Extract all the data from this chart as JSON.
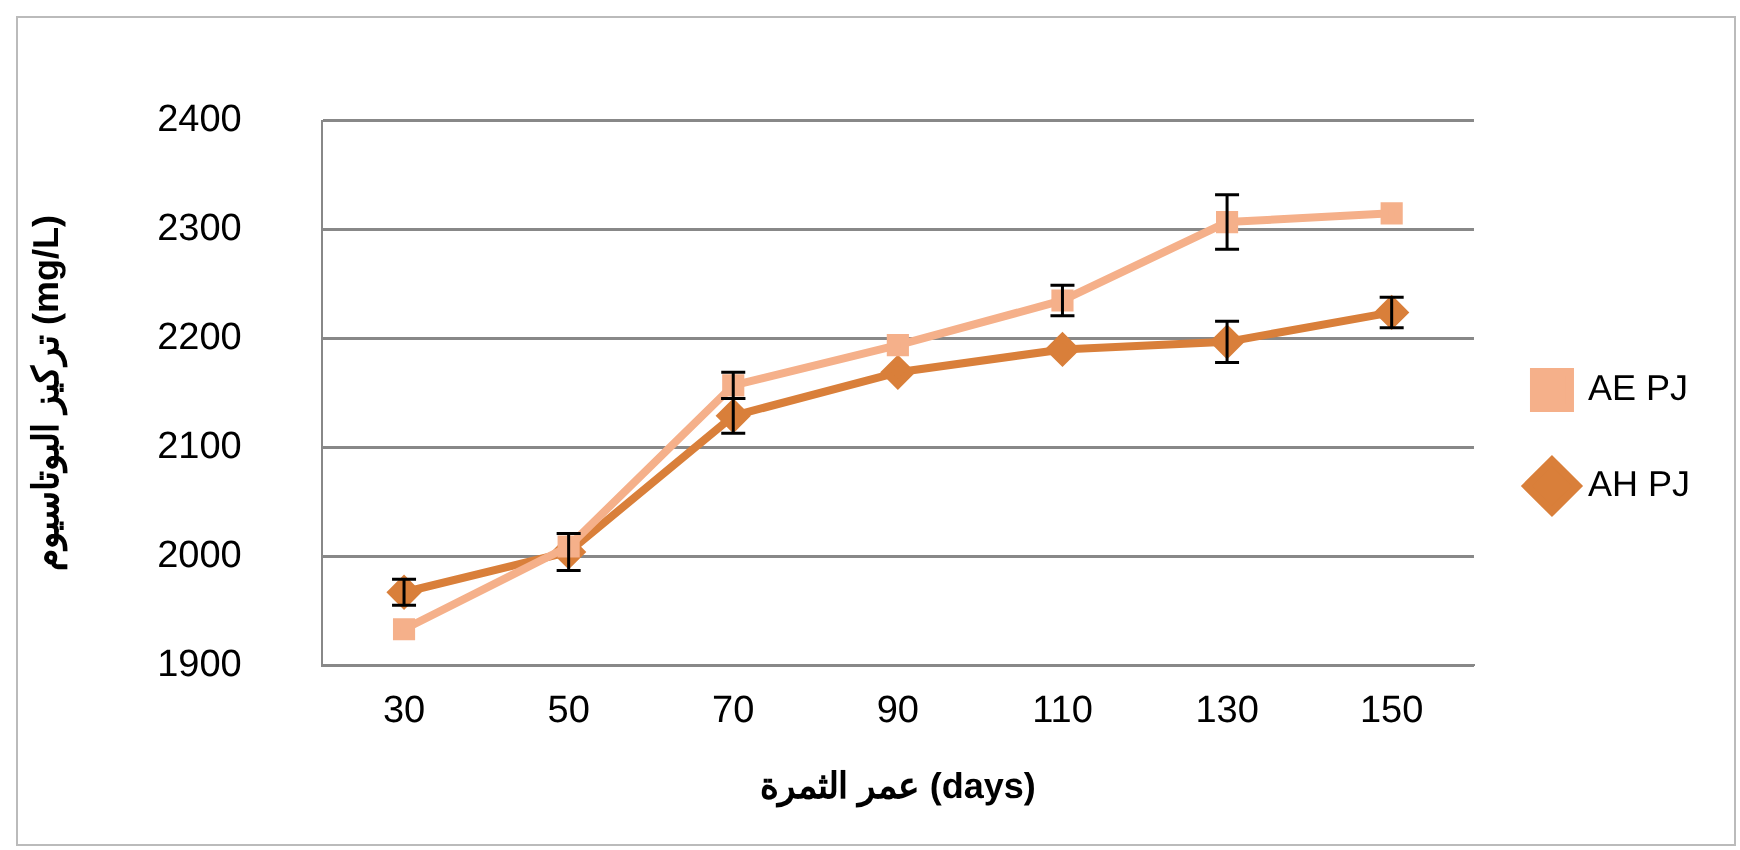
{
  "chart_data": {
    "type": "line",
    "xlabel": "عمر الثمرة (days)",
    "ylabel": "تركيز البوتاسيوم (mg/L)",
    "categories": [
      "30",
      "50",
      "70",
      "90",
      "110",
      "130",
      "150"
    ],
    "series": [
      {
        "name": "AH PJ",
        "color": "#d97f3a",
        "marker": "diamond",
        "values": [
          1967,
          2004,
          2129,
          2169,
          2190,
          2197,
          2224
        ],
        "errors": [
          12,
          17,
          16,
          null,
          null,
          19,
          14
        ]
      },
      {
        "name": "AE PJ",
        "color": "#f5b08a",
        "marker": "square",
        "values": [
          1933,
          2009,
          2157,
          2194,
          2235,
          2307,
          2315
        ],
        "errors": [
          null,
          null,
          12,
          null,
          14,
          25,
          null
        ]
      }
    ],
    "ylim": [
      1900,
      2400
    ],
    "yticks": [
      1900,
      2000,
      2100,
      2200,
      2300,
      2400
    ],
    "grid": "y",
    "legend": "right"
  }
}
